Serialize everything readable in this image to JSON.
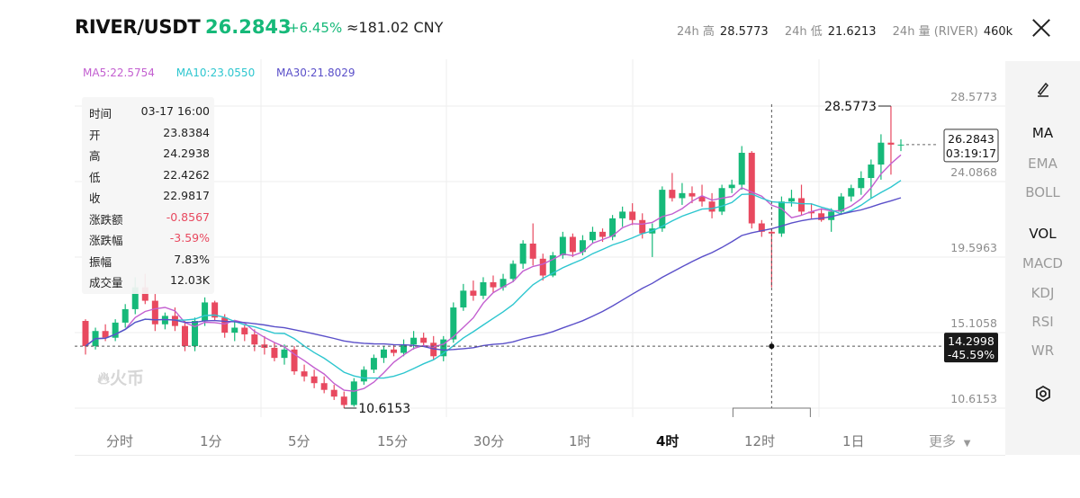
{
  "header": {
    "pair": "RIVER/USDT",
    "price": "26.2843",
    "change": "+6.45%",
    "cny": "≈181.02 CNY",
    "stats": [
      {
        "label": "24h 高",
        "value": "28.5773"
      },
      {
        "label": "24h 低",
        "value": "21.6213"
      },
      {
        "label": "24h 量 (RIVER)",
        "value": "460k"
      }
    ]
  },
  "ma_legend": {
    "ma5": "MA5:22.5754",
    "ma10": "MA10:23.0550",
    "ma30": "MA30:21.8029"
  },
  "tooltip": {
    "rows": [
      {
        "k": "时间",
        "v": "03-17 16:00"
      },
      {
        "k": "开",
        "v": "23.8384"
      },
      {
        "k": "高",
        "v": "24.2938"
      },
      {
        "k": "低",
        "v": "22.4262"
      },
      {
        "k": "收",
        "v": "22.9817"
      },
      {
        "k": "涨跌额",
        "v": "-0.8567"
      },
      {
        "k": "涨跌幅",
        "v": "-3.59%"
      },
      {
        "k": "振幅",
        "v": "7.83%"
      },
      {
        "k": "成交量",
        "v": "12.03K"
      }
    ]
  },
  "axis": {
    "ticks": [
      "28.5773",
      "24.0868",
      "19.5963",
      "15.1058",
      "10.6153"
    ],
    "current_price": "26.2843",
    "countdown": "03:19:17",
    "crosshair_price": "14.2998",
    "crosshair_pct": "-45.59%",
    "high_label": "28.5773",
    "low_label": "10.6153"
  },
  "sidebar": {
    "items": [
      "MA",
      "EMA",
      "BOLL",
      "VOL",
      "MACD",
      "KDJ",
      "RSI",
      "WR"
    ]
  },
  "timeframes": [
    "分时",
    "1分",
    "5分",
    "15分",
    "30分",
    "1时",
    "4时",
    "12时",
    "1日",
    "更多"
  ],
  "watermark": "火币",
  "colors": {
    "up": "#16b979",
    "down": "#e8495f",
    "ma5": "#c35fd0",
    "ma10": "#2dc6cf",
    "ma30": "#5a4fc9"
  },
  "chart_data": {
    "type": "candlestick",
    "interval": "4时",
    "ylim": [
      10.6153,
      28.5773
    ],
    "candles": [
      [
        15.8,
        15.9,
        13.8,
        14.3
      ],
      [
        14.3,
        15.4,
        14.1,
        15.2
      ],
      [
        15.2,
        15.6,
        14.6,
        14.8
      ],
      [
        14.8,
        15.9,
        14.6,
        15.7
      ],
      [
        15.7,
        16.8,
        15.4,
        16.5
      ],
      [
        16.5,
        18.4,
        16.2,
        17.8
      ],
      [
        17.8,
        18.6,
        16.8,
        17.0
      ],
      [
        17.0,
        17.4,
        15.2,
        15.6
      ],
      [
        15.6,
        16.3,
        15.3,
        16.1
      ],
      [
        16.1,
        16.6,
        15.2,
        15.5
      ],
      [
        15.5,
        15.8,
        14.0,
        14.3
      ],
      [
        14.3,
        16.0,
        14.0,
        15.8
      ],
      [
        15.8,
        17.2,
        15.5,
        16.9
      ],
      [
        16.9,
        17.0,
        15.8,
        16.0
      ],
      [
        16.0,
        16.2,
        14.8,
        15.1
      ],
      [
        15.1,
        15.8,
        14.6,
        15.4
      ],
      [
        15.4,
        15.6,
        14.6,
        15.0
      ],
      [
        15.0,
        15.3,
        14.0,
        14.4
      ],
      [
        14.4,
        14.9,
        13.8,
        14.2
      ],
      [
        14.2,
        14.5,
        13.4,
        13.6
      ],
      [
        13.6,
        14.4,
        13.2,
        14.1
      ],
      [
        14.1,
        14.3,
        12.6,
        12.8
      ],
      [
        12.8,
        13.2,
        12.2,
        12.5
      ],
      [
        12.5,
        12.9,
        11.8,
        12.1
      ],
      [
        12.1,
        12.5,
        11.5,
        11.7
      ],
      [
        11.7,
        12.0,
        11.1,
        11.3
      ],
      [
        11.3,
        11.6,
        10.6153,
        10.8
      ],
      [
        10.8,
        12.4,
        10.7,
        12.2
      ],
      [
        12.2,
        13.1,
        12.0,
        12.9
      ],
      [
        12.9,
        13.8,
        12.7,
        13.6
      ],
      [
        13.6,
        14.3,
        13.3,
        14.1
      ],
      [
        14.1,
        14.4,
        13.7,
        13.9
      ],
      [
        13.9,
        14.7,
        13.7,
        14.4
      ],
      [
        14.4,
        15.2,
        14.1,
        14.8
      ],
      [
        14.8,
        15.1,
        14.3,
        14.5
      ],
      [
        14.5,
        14.9,
        13.5,
        13.7
      ],
      [
        13.7,
        14.9,
        13.4,
        14.7
      ],
      [
        14.7,
        16.9,
        14.5,
        16.6
      ],
      [
        16.6,
        18.0,
        16.4,
        17.6
      ],
      [
        17.6,
        18.2,
        17.0,
        17.3
      ],
      [
        17.3,
        18.4,
        17.1,
        18.1
      ],
      [
        18.1,
        18.5,
        17.5,
        17.8
      ],
      [
        17.8,
        18.6,
        17.6,
        18.3
      ],
      [
        18.3,
        19.4,
        18.1,
        19.2
      ],
      [
        19.2,
        20.6,
        18.9,
        20.4
      ],
      [
        20.4,
        21.6,
        19.1,
        19.5
      ],
      [
        19.5,
        19.8,
        18.2,
        18.5
      ],
      [
        18.5,
        19.9,
        18.4,
        19.7
      ],
      [
        19.7,
        21.1,
        19.5,
        20.8
      ],
      [
        20.8,
        21.0,
        19.6,
        19.9
      ],
      [
        19.9,
        20.9,
        19.7,
        20.6
      ],
      [
        20.6,
        21.4,
        20.4,
        21.1
      ],
      [
        21.1,
        21.3,
        20.5,
        20.8
      ],
      [
        20.8,
        22.1,
        20.6,
        21.9
      ],
      [
        21.9,
        22.6,
        21.4,
        22.3
      ],
      [
        22.3,
        22.8,
        21.5,
        21.8
      ],
      [
        21.8,
        22.2,
        20.7,
        21.0
      ],
      [
        21.0,
        21.6,
        19.6,
        21.3
      ],
      [
        21.3,
        23.8,
        21.1,
        23.6
      ],
      [
        23.6,
        24.6,
        22.9,
        23.1
      ],
      [
        23.1,
        24.0,
        22.7,
        23.4
      ],
      [
        23.4,
        23.8,
        22.8,
        23.2
      ],
      [
        23.2,
        23.9,
        22.6,
        22.9
      ],
      [
        22.9,
        23.4,
        21.9,
        22.3
      ],
      [
        22.3,
        23.9,
        22.1,
        23.7
      ],
      [
        23.7,
        24.2,
        23.4,
        23.9
      ],
      [
        23.9,
        26.2,
        23.6,
        25.8
      ],
      [
        25.8,
        25.9,
        21.3,
        21.6
      ],
      [
        21.6,
        21.8,
        20.8,
        21.1
      ],
      [
        21.1,
        21.3,
        17.8,
        21.0
      ],
      [
        21.0,
        23.2,
        20.8,
        22.9
      ],
      [
        22.9,
        23.6,
        22.6,
        23.1
      ],
      [
        23.1,
        23.9,
        22.1,
        22.3
      ],
      [
        22.3,
        22.8,
        21.9,
        22.2
      ],
      [
        22.2,
        22.5,
        21.7,
        21.8
      ],
      [
        21.8,
        22.5,
        21.1,
        22.3
      ],
      [
        22.3,
        23.4,
        22.1,
        23.2
      ],
      [
        23.2,
        23.9,
        22.9,
        23.7
      ],
      [
        23.7,
        24.7,
        23.3,
        24.3
      ],
      [
        24.3,
        25.4,
        23.1,
        25.1
      ],
      [
        25.1,
        26.9,
        24.2,
        26.4
      ],
      [
        26.4,
        28.5773,
        24.5,
        26.2843
      ],
      [
        26.2843,
        26.6,
        25.9,
        26.2843
      ]
    ]
  }
}
